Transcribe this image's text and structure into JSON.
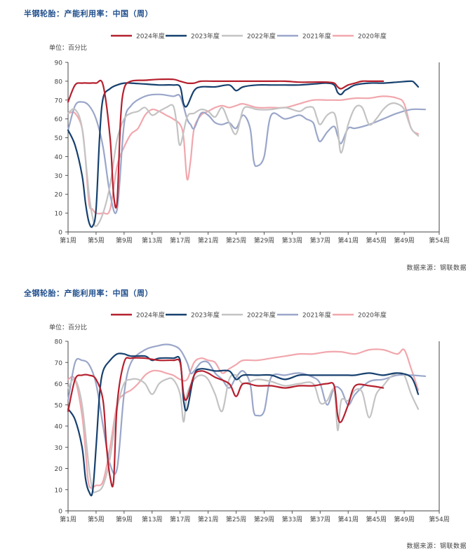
{
  "charts": [
    {
      "title": "半钢轮胎：产能利用率：中国（周）",
      "unit": "单位：百分比",
      "source": "数据来源：钢联数据"
    },
    {
      "title": "全钢轮胎：产能利用率：中国（周）",
      "unit": "单位：百分比",
      "source": "数据来源：钢联数据"
    }
  ],
  "colors": {
    "2024年度": "#b5202e",
    "2023年度": "#16406e",
    "2022年度": "#c3c3c3",
    "2021年度": "#9aa6c9",
    "2020年度": "#f1a7ad"
  },
  "chart_data": [
    {
      "type": "line",
      "title": "半钢轮胎：产能利用率：中国（周）",
      "ylabel": "单位：百分比",
      "ylim": [
        0,
        90
      ],
      "yticks": [
        0,
        10,
        20,
        30,
        40,
        50,
        60,
        70,
        80,
        90
      ],
      "xlim": [
        1,
        54
      ],
      "xticks": [
        "第1周",
        "第5周",
        "第9周",
        "第13周",
        "第17周",
        "第21周",
        "第25周",
        "第29周",
        "第33周",
        "第37周",
        "第41周",
        "第45周",
        "第49周",
        "第54周"
      ],
      "legend": "top",
      "series": [
        {
          "name": "2024年度",
          "x": [
            1,
            2,
            3,
            4,
            5,
            6,
            7,
            7.5,
            8,
            8.5,
            9,
            10,
            12,
            14,
            16,
            17,
            18,
            19,
            20,
            22,
            24,
            26,
            28,
            30,
            32,
            34,
            36,
            38,
            39,
            39.5,
            40,
            41,
            42,
            43,
            44,
            46
          ],
          "y": [
            69,
            78,
            79,
            79,
            79,
            78,
            50,
            20,
            16,
            60,
            76,
            80,
            80.5,
            81,
            81,
            80,
            79,
            79,
            80,
            80,
            80,
            80,
            80,
            80,
            80,
            79.5,
            79.5,
            79.5,
            79,
            77,
            76,
            78,
            79,
            80,
            80,
            80
          ]
        },
        {
          "name": "2023年度",
          "x": [
            1,
            2,
            3,
            3.5,
            4,
            4.5,
            5,
            5.5,
            6,
            7,
            8,
            9,
            10,
            12,
            14,
            16,
            17,
            17.5,
            18,
            19,
            20,
            22,
            24,
            25,
            26,
            28,
            30,
            32,
            34,
            36,
            38,
            39,
            39.5,
            40,
            40.5,
            41,
            42,
            44,
            46,
            48,
            50,
            50.5,
            51
          ],
          "y": [
            54,
            46,
            30,
            15,
            5,
            3,
            12,
            50,
            71,
            76,
            78,
            79,
            79,
            78.5,
            78,
            78,
            77,
            68,
            67,
            75,
            77,
            77,
            78,
            75,
            77,
            78,
            78,
            78,
            78,
            78.5,
            79,
            78,
            74,
            73,
            75,
            76,
            78,
            79,
            79,
            79.5,
            80,
            79,
            77
          ]
        },
        {
          "name": "2022年度",
          "x": [
            1,
            2,
            3,
            4,
            4.5,
            5,
            6,
            7,
            8,
            9,
            10,
            11,
            12,
            13,
            14,
            15,
            16,
            16.5,
            17,
            18,
            19,
            20,
            21,
            22,
            23,
            24,
            25,
            26,
            27,
            28,
            30,
            32,
            34,
            35,
            36,
            36.5,
            37,
            38,
            39,
            39.5,
            40,
            41,
            42,
            43,
            44,
            45,
            46,
            47,
            48,
            49,
            50,
            51
          ],
          "y": [
            63,
            65,
            55,
            20,
            8,
            3,
            10,
            25,
            49,
            60,
            63,
            64,
            66,
            62,
            64,
            66,
            67,
            58,
            46,
            61,
            63,
            65,
            64,
            61,
            66,
            58,
            52,
            65,
            66,
            65,
            65,
            66,
            64,
            66,
            66,
            61,
            57,
            62,
            63,
            55,
            42,
            57,
            66,
            66,
            57,
            60,
            65,
            68,
            68,
            65,
            55,
            51
          ]
        },
        {
          "name": "2021年度",
          "x": [
            1,
            2,
            3,
            4,
            5,
            6,
            7,
            8,
            9,
            10,
            12,
            14,
            16,
            17,
            18,
            18.5,
            19,
            20,
            21,
            22,
            23,
            24,
            25,
            26,
            27,
            27.5,
            28,
            29,
            30,
            32,
            34,
            35,
            36,
            36.5,
            37,
            38,
            39,
            39.5,
            40,
            41,
            42,
            44,
            46,
            48,
            50,
            52
          ],
          "y": [
            54,
            67,
            69,
            67,
            60,
            45,
            20,
            12,
            57,
            67,
            72,
            73,
            72,
            72,
            60,
            57,
            55,
            63,
            62,
            58,
            57,
            58,
            55,
            62,
            55,
            38,
            35,
            40,
            62,
            60,
            62,
            60,
            58,
            52,
            48,
            53,
            56,
            51,
            47,
            55,
            55,
            57,
            60,
            63,
            65,
            65
          ]
        },
        {
          "name": "2020年度",
          "x": [
            1,
            2,
            3,
            3.5,
            4,
            4.5,
            5,
            6,
            7,
            8,
            9,
            10,
            11,
            12,
            13,
            14,
            15,
            16,
            17,
            17.5,
            18,
            18.5,
            19,
            20,
            21,
            22,
            23,
            24,
            25,
            26,
            28,
            30,
            32,
            34,
            36,
            38,
            39,
            40,
            42,
            44,
            46,
            48,
            49,
            50,
            51
          ],
          "y": [
            63,
            63,
            55,
            38,
            15,
            12,
            10,
            10,
            12,
            35,
            45,
            52,
            55,
            62,
            65,
            64,
            62,
            60,
            57,
            50,
            28,
            38,
            55,
            62,
            64,
            66,
            67,
            66,
            67,
            68,
            66,
            66,
            66,
            68,
            70,
            70,
            70,
            70,
            71,
            71,
            72,
            71,
            68,
            55,
            52
          ]
        }
      ]
    },
    {
      "type": "line",
      "title": "全钢轮胎：产能利用率：中国（周）",
      "ylabel": "单位：百分比",
      "ylim": [
        0,
        80
      ],
      "yticks": [
        0,
        10,
        20,
        30,
        40,
        50,
        60,
        70,
        80
      ],
      "xlim": [
        1,
        54
      ],
      "xticks": [
        "第1周",
        "第5周",
        "第9周",
        "第13周",
        "第17周",
        "第21周",
        "第25周",
        "第29周",
        "第33周",
        "第37周",
        "第41周",
        "第45周",
        "第49周",
        "第54周"
      ],
      "legend": "top",
      "series": [
        {
          "name": "2024年度",
          "x": [
            1,
            2,
            3,
            4,
            5,
            6,
            6.5,
            7,
            7.5,
            8,
            9,
            10,
            12,
            14,
            16,
            17,
            17.5,
            18,
            19,
            20,
            21,
            22,
            24,
            25,
            26,
            28,
            30,
            32,
            34,
            36,
            38,
            39,
            39.5,
            40,
            41,
            42,
            44,
            46
          ],
          "y": [
            47,
            62,
            64,
            64,
            62,
            52,
            30,
            16,
            14,
            50,
            70,
            72,
            72,
            71,
            71,
            70,
            55,
            53,
            64,
            66,
            65,
            63,
            60,
            54,
            60,
            59,
            59,
            58,
            59,
            59,
            60,
            59,
            45,
            42,
            50,
            59,
            59,
            58
          ]
        },
        {
          "name": "2023年度",
          "x": [
            1,
            2,
            3,
            3.5,
            4,
            4.5,
            5,
            5.5,
            6,
            7,
            8,
            9,
            10,
            12,
            13,
            14,
            16,
            17,
            17.5,
            18,
            19,
            20,
            22,
            24,
            25,
            26,
            28,
            30,
            32,
            34,
            36,
            38,
            40,
            41,
            42,
            44,
            46,
            48,
            50,
            51
          ],
          "y": [
            48,
            43,
            30,
            15,
            9,
            9,
            30,
            55,
            66,
            71,
            74,
            74,
            73,
            73,
            71,
            72,
            72,
            71,
            52,
            48,
            64,
            67,
            66,
            66,
            62,
            64,
            64,
            64,
            62,
            64,
            64,
            64,
            64,
            64,
            64,
            65,
            64,
            65,
            63,
            55
          ]
        },
        {
          "name": "2022年度",
          "x": [
            1,
            2,
            3,
            4,
            4.5,
            5,
            6,
            7,
            8,
            9,
            10,
            11,
            12,
            13,
            14,
            15,
            16,
            17,
            17.5,
            18,
            19,
            20,
            21,
            22,
            23,
            24,
            25,
            26,
            28,
            30,
            32,
            34,
            36,
            37,
            38,
            39,
            39.5,
            40,
            41,
            42,
            43,
            44,
            45,
            46,
            47,
            48,
            49,
            50,
            51
          ],
          "y": [
            58,
            62,
            50,
            20,
            10,
            9,
            12,
            25,
            48,
            60,
            62,
            62,
            60,
            55,
            60,
            62,
            62,
            55,
            42,
            55,
            62,
            64,
            62,
            55,
            47,
            62,
            64,
            60,
            62,
            61,
            59,
            60,
            60,
            51,
            52,
            57,
            38,
            52,
            52,
            57,
            56,
            44,
            55,
            59,
            63,
            65,
            64,
            55,
            48
          ]
        },
        {
          "name": "2021年度",
          "x": [
            1,
            2,
            3,
            4,
            5,
            6,
            7,
            8,
            9,
            10,
            12,
            14,
            15,
            16,
            17,
            18,
            18.5,
            19,
            20,
            21,
            22,
            23,
            24,
            25,
            26,
            27,
            27.5,
            28,
            29,
            30,
            32,
            34,
            36,
            37,
            38,
            39,
            40,
            41,
            42,
            44,
            46,
            48,
            50,
            52
          ],
          "y": [
            52,
            70,
            71,
            69,
            60,
            40,
            22,
            20,
            55,
            70,
            76,
            78,
            78.5,
            78,
            76,
            70,
            65,
            66,
            70,
            70,
            65,
            62,
            58,
            63,
            66,
            60,
            47,
            45,
            47,
            63,
            64,
            65,
            63,
            60,
            50,
            58,
            57,
            50,
            55,
            61,
            62,
            64,
            64,
            63.5
          ]
        },
        {
          "name": "2020年度",
          "x": [
            1,
            2,
            3,
            3.5,
            4,
            5,
            6,
            7,
            8,
            9,
            10,
            11,
            12,
            13,
            14,
            15,
            16,
            17,
            18,
            19,
            20,
            21,
            22,
            23,
            24,
            25,
            26,
            28,
            30,
            32,
            34,
            36,
            38,
            40,
            42,
            44,
            46,
            48,
            49,
            50,
            51
          ],
          "y": [
            62,
            62,
            45,
            28,
            12,
            12,
            14,
            30,
            50,
            55,
            57,
            60,
            64,
            66,
            66,
            65,
            64,
            62,
            62,
            70,
            72,
            71,
            70,
            65,
            67,
            69,
            71,
            71,
            72,
            73,
            74,
            74,
            75,
            75,
            74,
            76,
            76,
            74,
            76,
            67,
            57
          ]
        }
      ]
    }
  ]
}
